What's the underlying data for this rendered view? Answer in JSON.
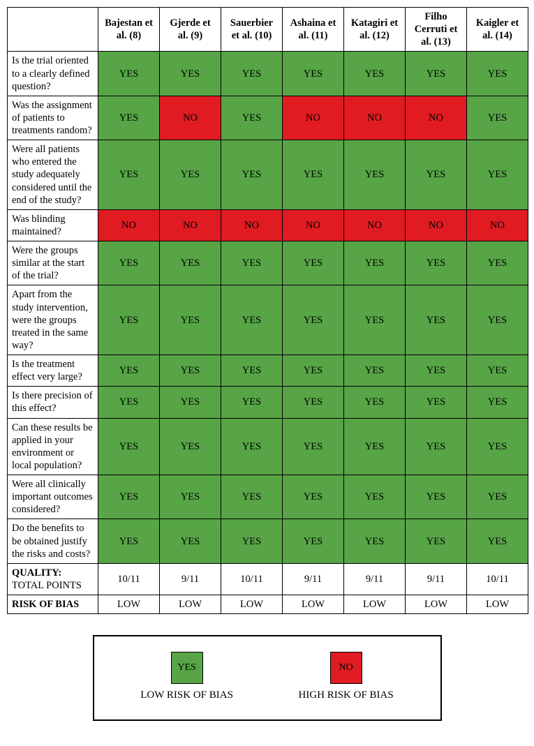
{
  "colors": {
    "yes_bg": "#57a546",
    "no_bg": "#e11b22",
    "border": "#000000",
    "page_bg": "#ffffff"
  },
  "yes_text": "YES",
  "no_text": "NO",
  "headers": [
    "Bajestan et al. (8)",
    "Gjerde et al. (9)",
    "Sauerbier et al. (10)",
    "Ashaina et al. (11)",
    "Katagiri et al. (12)",
    "Filho Cerruti et al. (13)",
    "Kaigler et al. (14)"
  ],
  "questions": [
    "Is the trial oriented to a clearly defined question?",
    "Was the assignment of patients to treatments random?",
    "Were all patients who entered the study adequately considered until the end of the study?",
    "Was blinding maintained?",
    "Were the groups similar at the start of the trial?",
    "Apart from the study intervention, were the groups treated in the same way?",
    "Is the treatment effect very large?",
    "Is there precision of this effect?",
    "Can these results be applied in your environment or local population?",
    "Were all clinically important outcomes considered?",
    "Do the benefits to be obtained justify the risks and costs?"
  ],
  "values": [
    [
      "YES",
      "YES",
      "YES",
      "YES",
      "YES",
      "YES",
      "YES"
    ],
    [
      "YES",
      "NO",
      "YES",
      "NO",
      "NO",
      "NO",
      "YES"
    ],
    [
      "YES",
      "YES",
      "YES",
      "YES",
      "YES",
      "YES",
      "YES"
    ],
    [
      "NO",
      "NO",
      "NO",
      "NO",
      "NO",
      "NO",
      "NO"
    ],
    [
      "YES",
      "YES",
      "YES",
      "YES",
      "YES",
      "YES",
      "YES"
    ],
    [
      "YES",
      "YES",
      "YES",
      "YES",
      "YES",
      "YES",
      "YES"
    ],
    [
      "YES",
      "YES",
      "YES",
      "YES",
      "YES",
      "YES",
      "YES"
    ],
    [
      "YES",
      "YES",
      "YES",
      "YES",
      "YES",
      "YES",
      "YES"
    ],
    [
      "YES",
      "YES",
      "YES",
      "YES",
      "YES",
      "YES",
      "YES"
    ],
    [
      "YES",
      "YES",
      "YES",
      "YES",
      "YES",
      "YES",
      "YES"
    ],
    [
      "YES",
      "YES",
      "YES",
      "YES",
      "YES",
      "YES",
      "YES"
    ]
  ],
  "quality": {
    "label_bold": "QUALITY:",
    "label_rest": "TOTAL POINTS",
    "scores": [
      "10/11",
      "9/11",
      "10/11",
      "9/11",
      "9/11",
      "9/11",
      "10/11"
    ]
  },
  "risk": {
    "label": "RISK OF BIAS",
    "values": [
      "LOW",
      "LOW",
      "LOW",
      "LOW",
      "LOW",
      "LOW",
      "LOW"
    ]
  },
  "legend": {
    "yes_label": "LOW RISK OF BIAS",
    "no_label": "HIGH RISK OF BIAS"
  }
}
